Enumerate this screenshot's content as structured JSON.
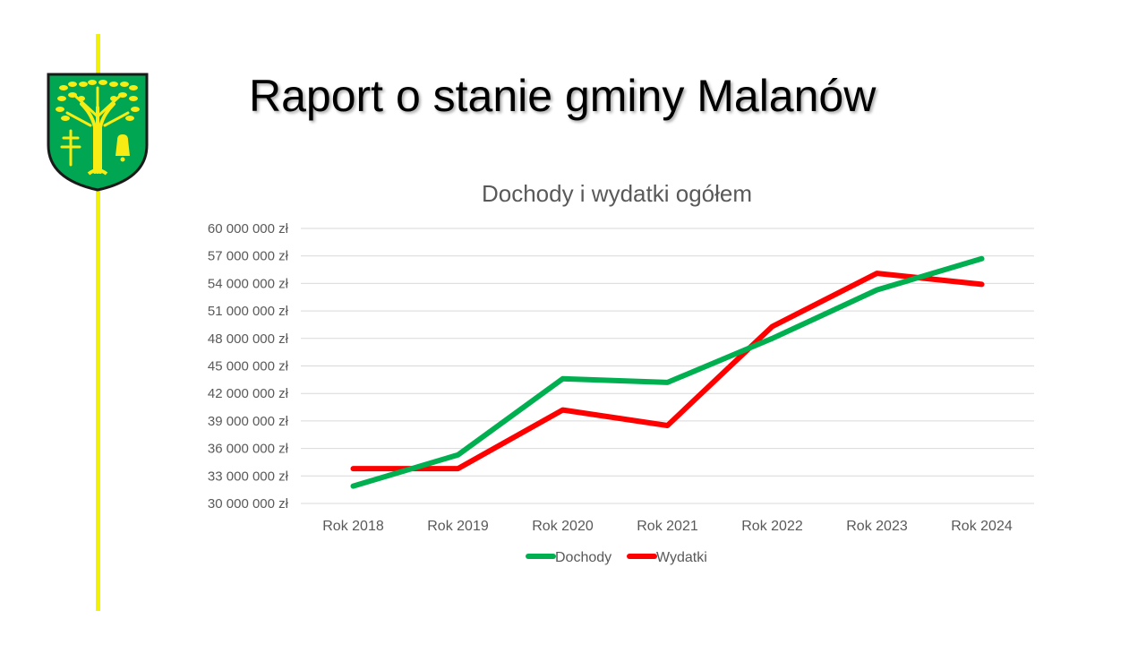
{
  "header": {
    "title": "Raport o stanie gminy Malanów",
    "logo_icon": "coat-of-arms-icon"
  },
  "colors": {
    "accent_line": "#f2f200",
    "dochody": "#00b050",
    "wydatki": "#ff0000",
    "gridline": "#d9d9d9",
    "text": "#595959"
  },
  "chart_data": {
    "type": "line",
    "title": "Dochody i wydatki ogółem",
    "categories": [
      "Rok 2018",
      "Rok 2019",
      "Rok 2020",
      "Rok 2021",
      "Rok 2022",
      "Rok 2023",
      "Rok 2024"
    ],
    "series": [
      {
        "name": "Dochody",
        "values": [
          31900000,
          35300000,
          43600000,
          43200000,
          48000000,
          53300000,
          56700000
        ]
      },
      {
        "name": "Wydatki",
        "values": [
          33800000,
          33800000,
          40200000,
          38500000,
          49300000,
          55100000,
          53900000
        ]
      }
    ],
    "ylim": [
      30000000,
      60000000
    ],
    "yticks": [
      "30 000 000 zł",
      "33 000 000 zł",
      "36 000 000 zł",
      "39 000 000 zł",
      "42 000 000 zł",
      "45 000 000 zł",
      "48 000 000 zł",
      "51 000 000 zł",
      "54 000 000 zł",
      "57 000 000 zł",
      "60 000 000 zł"
    ],
    "grid": true,
    "legend_position": "bottom",
    "xlabel": "",
    "ylabel": ""
  }
}
